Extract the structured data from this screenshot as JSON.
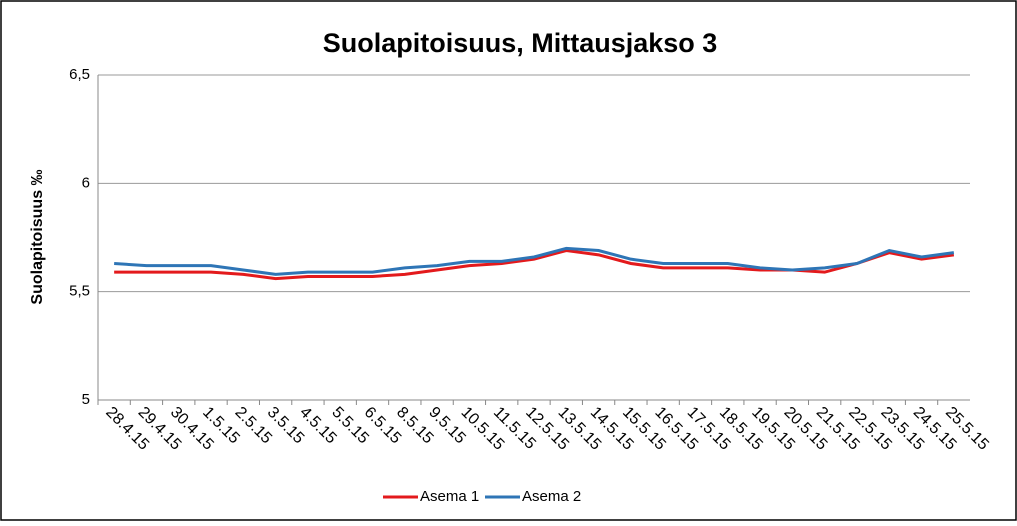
{
  "chart_data": {
    "type": "line",
    "title": "Suolapitoisuus, Mittausjakso 3",
    "y_label": "Suolapitoisuus ‰",
    "categories": [
      "28.4.15",
      "29.4.15",
      "30.4.15",
      "1.5.15",
      "2.5.15",
      "3.5.15",
      "4.5.15",
      "5.5.15",
      "6.5.15",
      "8.5.15",
      "9.5.15",
      "10.5.15",
      "11.5.15",
      "12.5.15",
      "13.5.15",
      "14.5.15",
      "15.5.15",
      "16.5.15",
      "17.5.15",
      "18.5.15",
      "19.5.15",
      "20.5.15",
      "21.5.15",
      "22.5.15",
      "23.5.15",
      "24.5.15",
      "25.5.15"
    ],
    "series": [
      {
        "name": "Asema 1",
        "color": "#e31a1c",
        "values": [
          5.59,
          5.59,
          5.59,
          5.59,
          5.58,
          5.56,
          5.57,
          5.57,
          5.57,
          5.58,
          5.6,
          5.62,
          5.63,
          5.65,
          5.69,
          5.67,
          5.63,
          5.61,
          5.61,
          5.61,
          5.6,
          5.6,
          5.59,
          5.63,
          5.68,
          5.65,
          5.67
        ]
      },
      {
        "name": "Asema 2",
        "color": "#2e75b6",
        "values": [
          5.63,
          5.62,
          5.62,
          5.62,
          5.6,
          5.58,
          5.59,
          5.59,
          5.59,
          5.61,
          5.62,
          5.64,
          5.64,
          5.66,
          5.7,
          5.69,
          5.65,
          5.63,
          5.63,
          5.63,
          5.61,
          5.6,
          5.61,
          5.63,
          5.69,
          5.66,
          5.68
        ]
      }
    ],
    "ylim": [
      5,
      6.5
    ],
    "yticks": [
      5,
      {
        "value": 5.5,
        "label": "5,5"
      },
      6,
      {
        "value": 6.5,
        "label": "6,5"
      }
    ],
    "grid": true,
    "legend": "bottom"
  }
}
